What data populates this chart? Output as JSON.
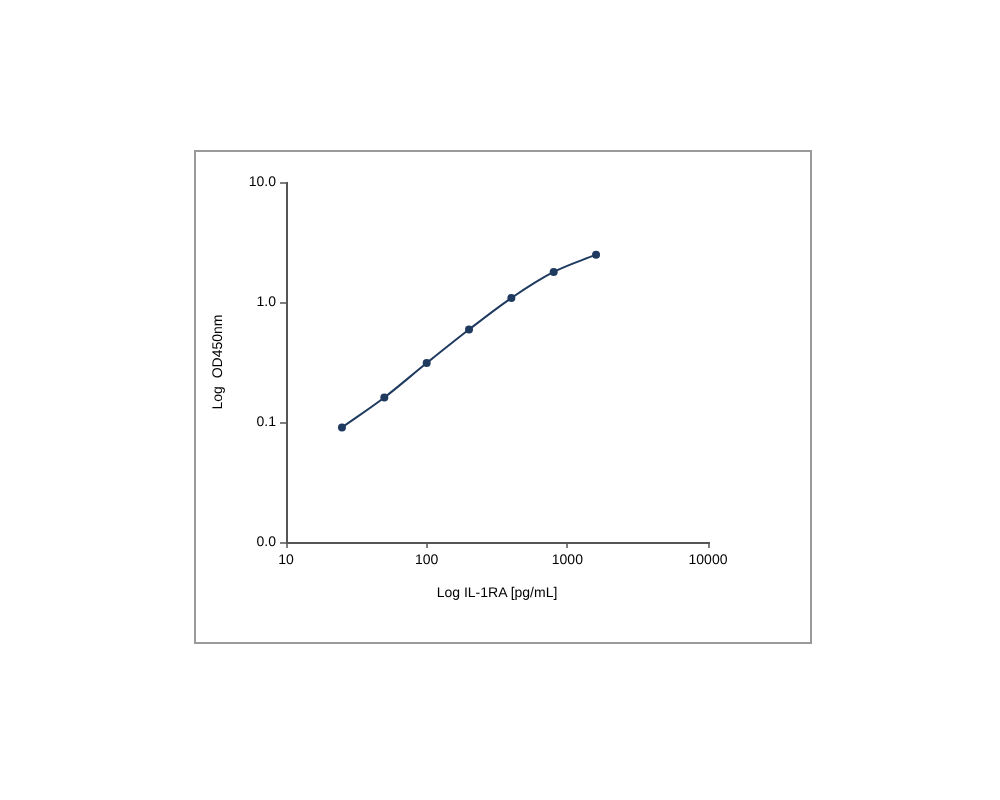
{
  "chart_data": {
    "type": "line",
    "xlabel": "Log IL-1RA [pg/mL]",
    "ylabel": "Log  OD450nm",
    "x": [
      25,
      50,
      100,
      200,
      400,
      800,
      1600
    ],
    "series": [
      {
        "color": "#1f3a5f",
        "values": [
          0.09,
          0.16,
          0.31,
          0.59,
          1.08,
          1.78,
          2.48
        ]
      }
    ],
    "log": "xy",
    "xlim": [
      10,
      10000
    ],
    "xticks": [
      10,
      100,
      1000,
      10000
    ],
    "ylim": [
      0.01,
      10
    ],
    "yticks": [
      {
        "value": 0.01,
        "label": "0.0"
      },
      {
        "value": 0.1,
        "label": "0.1"
      },
      {
        "value": 1,
        "label": "1.0"
      },
      {
        "value": 10,
        "label": "10.0"
      }
    ],
    "grid": false,
    "legend": false,
    "marker": "circle",
    "line_style": "solid"
  }
}
